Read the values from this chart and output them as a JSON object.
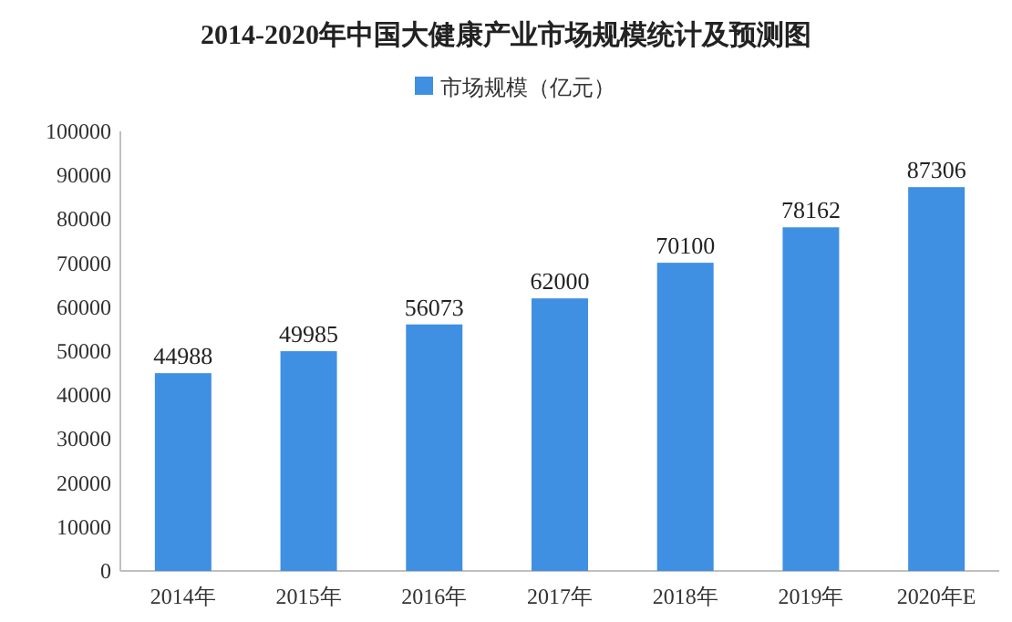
{
  "chart_data": {
    "type": "bar",
    "title": "2014-2020年中国大健康产业市场规模统计及预测图",
    "categories": [
      "2014年",
      "2015年",
      "2016年",
      "2017年",
      "2018年",
      "2019年",
      "2020年E"
    ],
    "series": [
      {
        "name": "市场规模（亿元）",
        "color": "#3f8fe2",
        "values": [
          44988,
          49985,
          56073,
          62000,
          70100,
          78162,
          87306
        ]
      }
    ],
    "ylim": [
      0,
      100000
    ],
    "yticks": [
      0,
      10000,
      20000,
      30000,
      40000,
      50000,
      60000,
      70000,
      80000,
      90000,
      100000
    ],
    "data_labels": true,
    "legend": "top",
    "grid": false
  }
}
